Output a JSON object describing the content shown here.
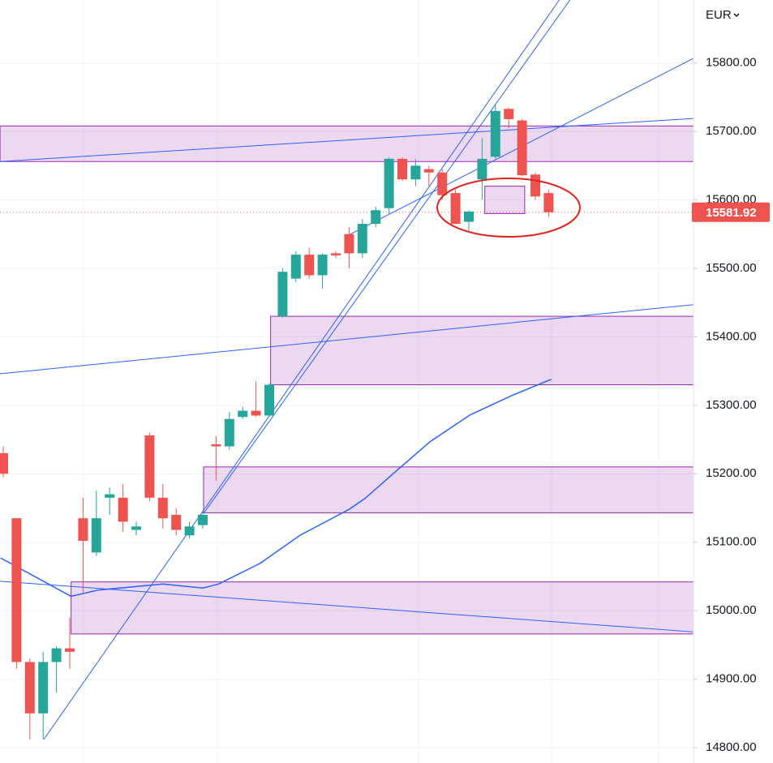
{
  "chart_data": {
    "type": "candlestick",
    "currency": "EUR",
    "last_price": 15581.92,
    "ylim": [
      14777.5,
      15892
    ],
    "yticks": [
      {
        "value": 14800,
        "label": "14800.00"
      },
      {
        "value": 14900,
        "label": "14900.00"
      },
      {
        "value": 15000,
        "label": "15000.00"
      },
      {
        "value": 15100,
        "label": "15100.00"
      },
      {
        "value": 15200,
        "label": "15200.00"
      },
      {
        "value": 15300,
        "label": "15300.00"
      },
      {
        "value": 15400,
        "label": "15400.00"
      },
      {
        "value": 15500,
        "label": "15500.00"
      },
      {
        "value": 15600,
        "label": "15600.00"
      },
      {
        "value": 15700,
        "label": "15700.00"
      },
      {
        "value": 15800,
        "label": "15800.00"
      }
    ],
    "grid": true,
    "up_color": "#26a69a",
    "down_color": "#ef5350",
    "open": [
      15230,
      15135,
      14925,
      14850,
      14925,
      14945,
      15135,
      15085,
      15165,
      15165,
      15118,
      15256,
      15165,
      15140,
      15110,
      15125,
      15243,
      15240,
      15283,
      15292,
      15285,
      15430,
      15485,
      15520,
      15490,
      15522,
      15550,
      15522,
      15565,
      15588,
      15660,
      15630,
      15645,
      15640,
      15610,
      15568,
      15630,
      15663,
      15733,
      15716,
      15637,
      15610
    ],
    "high": [
      15240,
      15135,
      14930,
      14940,
      14948,
      14990,
      15165,
      15175,
      15180,
      15185,
      15130,
      15260,
      15185,
      15150,
      15130,
      15145,
      15255,
      15290,
      15298,
      15335,
      15332,
      15500,
      15525,
      15530,
      15522,
      15525,
      15560,
      15572,
      15590,
      15662,
      15662,
      15660,
      15650,
      15645,
      15615,
      15585,
      15690,
      15740,
      15735,
      15718,
      15640,
      15615
    ],
    "low": [
      15195,
      14915,
      14812,
      14812,
      14880,
      14915,
      15025,
      15080,
      15140,
      15115,
      15110,
      15160,
      15120,
      15110,
      15105,
      15120,
      15190,
      15235,
      15280,
      15283,
      15283,
      15428,
      15480,
      15485,
      15470,
      15515,
      15500,
      15515,
      15560,
      15580,
      15628,
      15620,
      15620,
      15600,
      15565,
      15555,
      15600,
      15660,
      15705,
      15635,
      15600,
      15575
    ],
    "close": [
      15200,
      14925,
      14850,
      14925,
      14945,
      14940,
      15102,
      15135,
      15170,
      15130,
      15123,
      15165,
      15135,
      15118,
      15123,
      15140,
      15240,
      15280,
      15292,
      15285,
      15330,
      15495,
      15520,
      15490,
      15520,
      15519,
      15522,
      15565,
      15585,
      15660,
      15630,
      15650,
      15640,
      15607,
      15565,
      15583,
      15660,
      15730,
      15718,
      15636,
      15605,
      15581.92
    ],
    "zones": [
      {
        "start": -0.24,
        "low": 15656,
        "high": 15708
      },
      {
        "start": 20.1,
        "low": 15330,
        "high": 15430
      },
      {
        "start": 15.06,
        "low": 15143,
        "high": 15210
      },
      {
        "start": 5.1,
        "low": 14966,
        "high": 15042
      },
      {
        "start": 36.2,
        "end": 39.2,
        "low": 15580,
        "high": 15620
      }
    ],
    "lines": [
      {
        "x": [
          -0.24,
          51.9
        ],
        "y": [
          15656,
          15719
        ]
      },
      {
        "x": [
          -0.24,
          51.9
        ],
        "y": [
          15346,
          15447
        ]
      },
      {
        "x": [
          -0.24,
          51.9
        ],
        "y": [
          15043,
          14969
        ]
      },
      {
        "x": [
          3.05,
          41.8
        ],
        "y": [
          14812,
          15892
        ]
      },
      {
        "x": [
          15.06,
          42.6
        ],
        "y": [
          15142,
          15892
        ]
      },
      {
        "x": [
          26,
          51.9
        ],
        "y": [
          15549,
          15807
        ]
      }
    ],
    "moving_average": {
      "color": "#2962ff",
      "x": [
        -0.2,
        5.1,
        7.1,
        12,
        15,
        16.2,
        19.3,
        22.3,
        26,
        27.2,
        29.6,
        32.1,
        35.1,
        38.2,
        41.2
      ],
      "y": [
        15077,
        15021,
        15030,
        15039,
        15033,
        15039,
        15069,
        15110,
        15148,
        15164,
        15205,
        15247,
        15286,
        15314,
        15338
      ]
    }
  }
}
